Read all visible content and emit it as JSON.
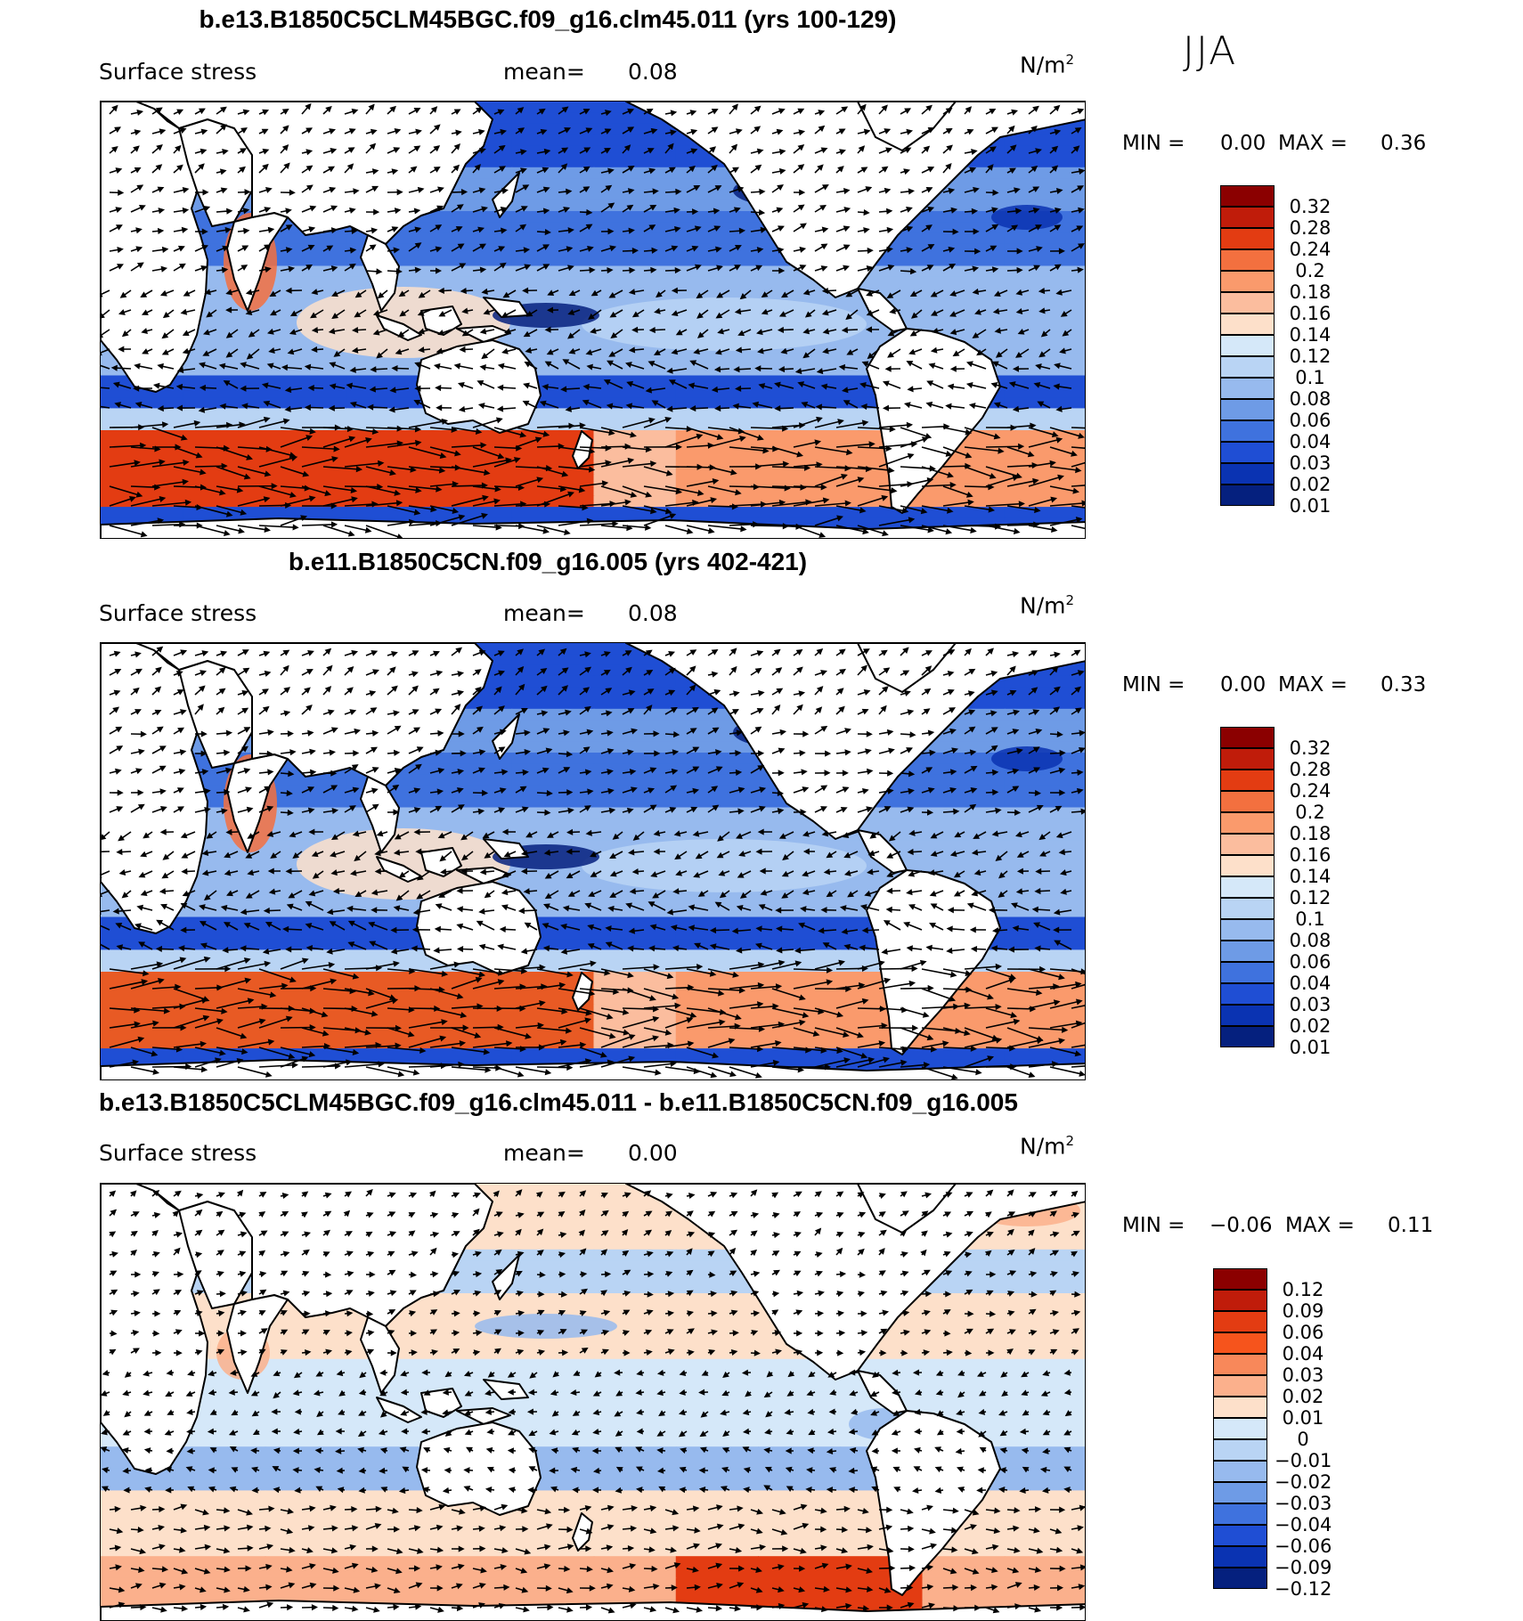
{
  "season": "JJA",
  "panels": [
    {
      "title": "b.e13.B1850C5CLM45BGC.f09_g16.clm45.011 (yrs 100-129)",
      "variable": "Surface stress",
      "mean_label": "mean=",
      "mean_value": "0.08",
      "units_main": "N/m",
      "units_sup": "2",
      "min_label": "MIN =",
      "min_value": "0.00",
      "max_label": "MAX =",
      "max_value": "0.36"
    },
    {
      "title": "b.e11.B1850C5CN.f09_g16.005 (yrs 402-421)",
      "variable": "Surface stress",
      "mean_label": "mean=",
      "mean_value": "0.08",
      "units_main": "N/m",
      "units_sup": "2",
      "min_label": "MIN =",
      "min_value": "0.00",
      "max_label": "MAX =",
      "max_value": "0.33"
    },
    {
      "title": "b.e13.B1850C5CLM45BGC.f09_g16.clm45.011 - b.e11.B1850C5CN.f09_g16.005",
      "variable": "Surface stress",
      "mean_label": "mean=",
      "mean_value": "0.00",
      "units_main": "N/m",
      "units_sup": "2",
      "min_label": "MIN =",
      "min_value": "−0.06",
      "max_label": "MAX =",
      "max_value": "0.11"
    }
  ],
  "chart_data": [
    {
      "type": "heatmap",
      "title": "b.e13.B1850C5CLM45BGC.f09_g16.clm45.011 (yrs 100-129)",
      "variable": "Surface stress",
      "units": "N/m^2",
      "mean": 0.08,
      "min": 0.0,
      "max": 0.36,
      "colorbar_ticks": [
        "0.32",
        "0.28",
        "0.24",
        "0.2",
        "0.18",
        "0.16",
        "0.14",
        "0.12",
        "0.1",
        "0.08",
        "0.06",
        "0.04",
        "0.03",
        "0.02",
        "0.01"
      ],
      "colorbar_colors": [
        "#8b0000",
        "#c01c0a",
        "#e33c12",
        "#f3703f",
        "#fa9a6c",
        "#fbbd9e",
        "#fde0ca",
        "#d5e8f9",
        "#b9d4f4",
        "#97baee",
        "#6e9be6",
        "#3f72de",
        "#1f4ed4",
        "#0a33b2",
        "#05207e"
      ]
    },
    {
      "type": "heatmap",
      "title": "b.e11.B1850C5CN.f09_g16.005 (yrs 402-421)",
      "variable": "Surface stress",
      "units": "N/m^2",
      "mean": 0.08,
      "min": 0.0,
      "max": 0.33,
      "colorbar_ticks": [
        "0.32",
        "0.28",
        "0.24",
        "0.2",
        "0.18",
        "0.16",
        "0.14",
        "0.12",
        "0.1",
        "0.08",
        "0.06",
        "0.04",
        "0.03",
        "0.02",
        "0.01"
      ],
      "colorbar_colors": [
        "#8b0000",
        "#c01c0a",
        "#e33c12",
        "#f3703f",
        "#fa9a6c",
        "#fbbd9e",
        "#fde0ca",
        "#d5e8f9",
        "#b9d4f4",
        "#97baee",
        "#6e9be6",
        "#3f72de",
        "#1f4ed4",
        "#0a33b2",
        "#05207e"
      ]
    },
    {
      "type": "heatmap",
      "title": "b.e13.B1850C5CLM45BGC.f09_g16.clm45.011 - b.e11.B1850C5CN.f09_g16.005",
      "variable": "Surface stress",
      "units": "N/m^2",
      "mean": 0.0,
      "min": -0.06,
      "max": 0.11,
      "colorbar_ticks": [
        "0.12",
        "0.09",
        "0.06",
        "0.04",
        "0.03",
        "0.02",
        "0.01",
        "0",
        "−0.01",
        "−0.02",
        "−0.03",
        "−0.04",
        "−0.06",
        "−0.09",
        "−0.12"
      ],
      "colorbar_colors": [
        "#8b0000",
        "#c01c0a",
        "#e33c12",
        "#f6541c",
        "#f8885a",
        "#fbb08c",
        "#fde0ca",
        "#d5e8f9",
        "#b9d4f4",
        "#97baee",
        "#6e9be6",
        "#3f72de",
        "#1f4ed4",
        "#0a33b2",
        "#05207e"
      ]
    }
  ]
}
